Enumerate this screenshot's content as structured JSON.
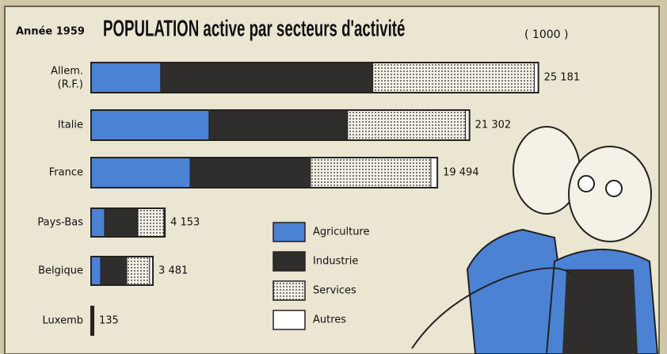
{
  "chart_data": {
    "type": "bar",
    "orientation": "horizontal",
    "stacked": true,
    "year_label": "Année 1959",
    "title": "POPULATION active par secteurs d'activité",
    "unit_label": "( 1000 )",
    "categories": [
      [
        "Allem.",
        "(R.F.)"
      ],
      "Italie",
      "France",
      "Pays-Bas",
      "Belgique",
      "Luxemb"
    ],
    "series": [
      {
        "name": "Agriculture",
        "color": "#4c82d4",
        "values": [
          3920,
          6640,
          5580,
          760,
          535,
          15
        ]
      },
      {
        "name": "Industrie",
        "color": "#2f2e2c",
        "values": [
          11940,
          7800,
          6770,
          1870,
          1470,
          60
        ]
      },
      {
        "name": "Services",
        "color": "dots",
        "values": [
          9090,
          6640,
          6780,
          1470,
          1290,
          50
        ]
      },
      {
        "name": "Autres",
        "color": "#ffffff",
        "values": [
          231,
          222,
          364,
          53,
          186,
          10
        ]
      }
    ],
    "total_labels": [
      "25 181",
      "21 302",
      "19 494",
      "4 153",
      "3 481",
      "135"
    ],
    "xlim": [
      0,
      26000
    ]
  }
}
